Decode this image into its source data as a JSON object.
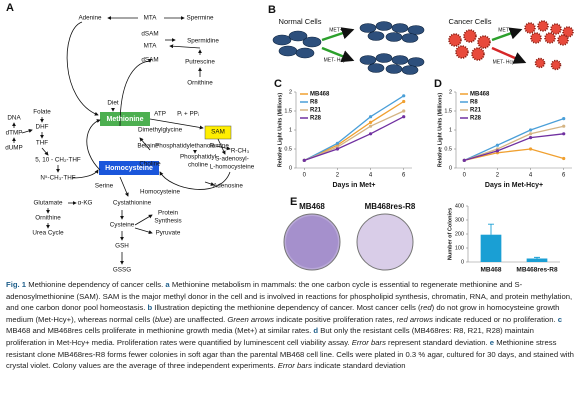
{
  "diagram": {
    "panel": "A",
    "labels": [
      "Adenine",
      "MTA",
      "Spermine",
      "dSAM",
      "Spermidine",
      "MTA",
      "dSAM",
      "Putrescine",
      "Ornithine",
      "Diet",
      "Methionine",
      "ATP",
      "Pᵢ + PPᵢ",
      "SAM",
      "Dimethylglycine",
      "Betaine",
      "Phosphatidylethanolamine",
      "R",
      "R-CH₃",
      "Choline",
      "Phosphatidyl",
      "choline",
      "S-adenosyl-",
      "L-homocysteine",
      "Homocysteine",
      "Serine",
      "Homocysteine",
      "Adenosine",
      "Glutamate",
      "α-KG",
      "Cystathionine",
      "Ornithine",
      "Urea Cycle",
      "Cysteine",
      "Protein",
      "Synthesis",
      "Pyruvate",
      "GSH",
      "GSSG",
      "Folate",
      "DHF",
      "THF",
      "5, 10 - CH₂-THF",
      "N⁵-CH₃-THF",
      "DNA",
      "dTMP",
      "dUMP"
    ]
  },
  "panel_b": {
    "panel": "B",
    "normal": "Normal Cells",
    "cancer": "Cancer Cells",
    "arrows": [
      "MET+",
      "MET- Hcy+",
      "MET+",
      "MET- Hcy+"
    ]
  },
  "panel_e": {
    "panel": "E",
    "dishes": [
      "MB468",
      "MB468res-R8"
    ]
  },
  "chart_data": [
    {
      "type": "line",
      "panel": "C",
      "x_label": "Days in Met+",
      "y_label": "Relative Light Units (Millions)",
      "x": [
        0,
        2,
        4,
        6
      ],
      "xlim": [
        -0.5,
        6.5
      ],
      "xticks": [
        0,
        2,
        4,
        6
      ],
      "ylim": [
        0,
        2
      ],
      "yticks": [
        0,
        0.5,
        1,
        1.5,
        2
      ],
      "series": [
        {
          "name": "MB468",
          "color": "#f0a030",
          "values": [
            0.2,
            0.6,
            1.2,
            1.75
          ]
        },
        {
          "name": "R8",
          "color": "#4a9fd8",
          "values": [
            0.2,
            0.65,
            1.35,
            1.9
          ]
        },
        {
          "name": "R21",
          "color": "#d4b483",
          "values": [
            0.2,
            0.55,
            1.1,
            1.5
          ]
        },
        {
          "name": "R28",
          "color": "#7030a0",
          "values": [
            0.2,
            0.5,
            0.9,
            1.35
          ]
        }
      ]
    },
    {
      "type": "line",
      "panel": "D",
      "x_label": "Days in Met-Hcy+",
      "y_label": "Relative Light Units (Millions)",
      "x": [
        0,
        2,
        4,
        6
      ],
      "xlim": [
        -0.5,
        6.5
      ],
      "xticks": [
        0,
        2,
        4,
        6
      ],
      "ylim": [
        0,
        2
      ],
      "yticks": [
        0,
        0.5,
        1,
        1.5,
        2
      ],
      "series": [
        {
          "name": "MB468",
          "color": "#f0a030",
          "values": [
            0.2,
            0.4,
            0.5,
            0.25
          ]
        },
        {
          "name": "R8",
          "color": "#4a9fd8",
          "values": [
            0.2,
            0.6,
            1.0,
            1.3
          ]
        },
        {
          "name": "R21",
          "color": "#d4b483",
          "values": [
            0.2,
            0.5,
            0.9,
            1.1
          ]
        },
        {
          "name": "R28",
          "color": "#7030a0",
          "values": [
            0.2,
            0.45,
            0.8,
            0.9
          ]
        }
      ]
    },
    {
      "type": "bar",
      "y_label": "Number of Colonies",
      "categories": [
        "MB468",
        "MB468res-R8"
      ],
      "values": [
        195,
        25
      ],
      "errors": [
        75,
        8
      ],
      "color": "#1a9fd4",
      "ylim": [
        0,
        400
      ],
      "yticks": [
        0,
        100,
        200,
        300,
        400
      ]
    }
  ],
  "caption": {
    "parts": [
      "Fig. 1",
      " Methionine dependency of cancer cells. ",
      "a",
      " Methionine metabolism in mammals: the one carbon cycle is essential to regenerate methionine and S-adenosylmethionine (SAM). SAM is the major methyl donor in the cell and is involved in reactions for phospholipid synthesis, chromatin, RNA, and protein methylation, and one carbon donor pool homeostasis. ",
      "b",
      " Illustration depicting the methionine dependency of cancer. Most cancer cells (",
      "red",
      ") do not grow in homocysteine growth medium (Met-Hcy+), whereas normal cells (",
      "blue",
      ") are unaffected. ",
      "Green arrows",
      " indicate positive proliferation rates, ",
      "red arrows",
      " indicate reduced or no proliferation. ",
      "c",
      " MB468 and MB468res cells proliferate in methionine growth media (Met+) at similar rates. ",
      "d",
      " But only the resistant cells (MB468res: R8, R21, R28) maintain proliferation in Met-Hcy+ media. Proliferation rates were quantified by luminescent cell viability assay. ",
      "Error bars",
      " represent standard deviation. ",
      "e",
      " Methionine stress resistant clone MB468res-R8 forms fewer colonies in soft agar than the parental MB468 cell line. Cells were plated in 0.3 % agar, cultured for 30 days, and stained with crystal violet. Colony values are the average of three independent experiments. ",
      "Error bars",
      " indicate standard deviation"
    ]
  }
}
